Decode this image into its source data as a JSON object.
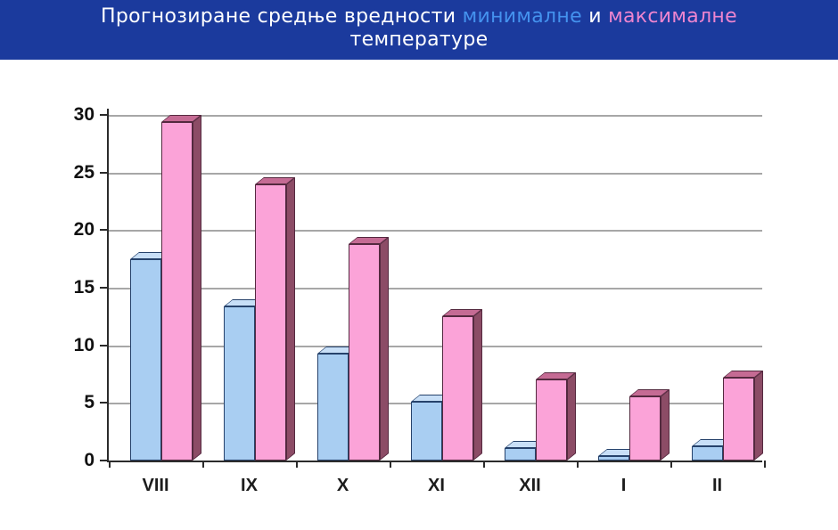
{
  "header": {
    "background": "#1b3a9d",
    "segments": [
      {
        "text": "Прогнозиране средње вредности ",
        "color": "#ffffff"
      },
      {
        "text": "минималне",
        "color": "#4492ee"
      },
      {
        "text": " и ",
        "color": "#ffffff"
      },
      {
        "text": "максималне",
        "color": "#ee85cf"
      },
      {
        "br": true
      },
      {
        "text": "температуре",
        "color": "#ffffff"
      }
    ]
  },
  "chart_data": {
    "type": "bar",
    "title": "Прогнозиране средње вредности минималне и максималне температуре",
    "categories": [
      "VIII",
      "IX",
      "X",
      "XI",
      "XII",
      "I",
      "II"
    ],
    "series": [
      {
        "name": "минималне",
        "values": [
          17.5,
          13.4,
          9.3,
          5.1,
          1.1,
          0.4,
          1.2
        ],
        "front": "#a9cef2",
        "side": "#6e93c0",
        "top": "#c8dff7",
        "border": "#26426b"
      },
      {
        "name": "максималне",
        "values": [
          29.4,
          24.0,
          18.8,
          12.5,
          7.0,
          5.6,
          7.2
        ],
        "front": "#fba3d8",
        "side": "#8c4c66",
        "top": "#c56b94",
        "border": "#54293f"
      }
    ],
    "xlabel": "",
    "ylabel": "",
    "ylim": [
      0,
      30
    ],
    "yticks": [
      0,
      5,
      10,
      15,
      20,
      25,
      30
    ],
    "grid": true,
    "legend_position": "none"
  }
}
